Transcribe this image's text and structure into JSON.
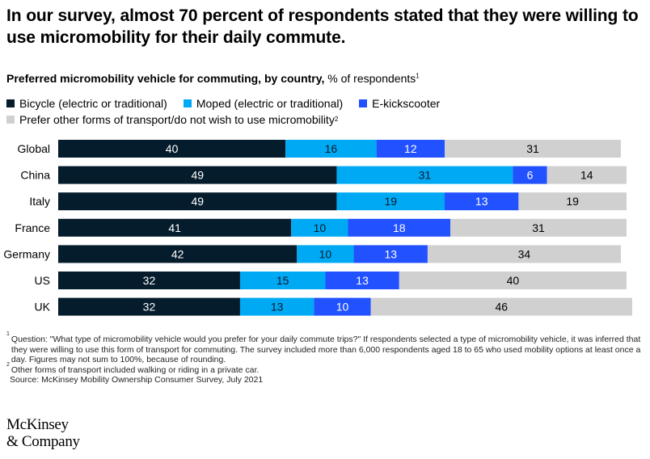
{
  "headline": "In our survey, almost 70 percent of respondents stated that they were willing to use micromobility for their daily commute.",
  "subtitle": {
    "bold": "Preferred micromobility vehicle for commuting, by country,",
    "rest": " % of respondents",
    "sup": "1"
  },
  "legend": [
    {
      "label": "Bicycle (electric or traditional)",
      "color": "#051c2c"
    },
    {
      "label": "Moped (electric or traditional)",
      "color": "#00a9f4"
    },
    {
      "label": "E-kickscooter",
      "color": "#2251ff"
    },
    {
      "label": "Prefer other forms of transport/do not wish to use micromobility",
      "sup": "2",
      "color": "#d0d0d0"
    }
  ],
  "chart_data": {
    "type": "bar",
    "orientation": "horizontal",
    "stacked": true,
    "categories": [
      "Global",
      "China",
      "Italy",
      "France",
      "Germany",
      "US",
      "UK"
    ],
    "series": [
      {
        "name": "Bicycle (electric or traditional)",
        "color": "#051c2c",
        "label_color": "#ffffff",
        "values": [
          40,
          49,
          49,
          41,
          42,
          32,
          32
        ]
      },
      {
        "name": "Moped (electric or traditional)",
        "color": "#00a9f4",
        "label_color": "#051c2c",
        "values": [
          16,
          31,
          19,
          10,
          10,
          15,
          13
        ]
      },
      {
        "name": "E-kickscooter",
        "color": "#2251ff",
        "label_color": "#ffffff",
        "values": [
          12,
          6,
          13,
          18,
          13,
          13,
          10
        ]
      },
      {
        "name": "Prefer other forms of transport/do not wish to use micromobility",
        "color": "#d0d0d0",
        "label_color": "#000000",
        "values": [
          31,
          14,
          19,
          31,
          34,
          40,
          46
        ]
      }
    ],
    "xlim": [
      0,
      100
    ],
    "grid": false,
    "legend_position": "top"
  },
  "footnotes": [
    {
      "sup": "1",
      "text": "Question: \"What type of micromobility vehicle would you prefer for your daily commute trips?\" If respondents selected a type of micromobility vehicle, it was inferred that they were willing to use this form of transport for commuting. The survey included more than 6,000 respondents aged 18 to 65 who used mobility options at least once a day. Figures may not sum to 100%, because of rounding."
    },
    {
      "sup": "2",
      "text": "Other forms of transport included walking or riding in a private car."
    }
  ],
  "source": "Source: McKinsey Mobility Ownership Consumer Survey, July 2021",
  "logo": {
    "line1": "McKinsey",
    "line2": "& Company"
  }
}
